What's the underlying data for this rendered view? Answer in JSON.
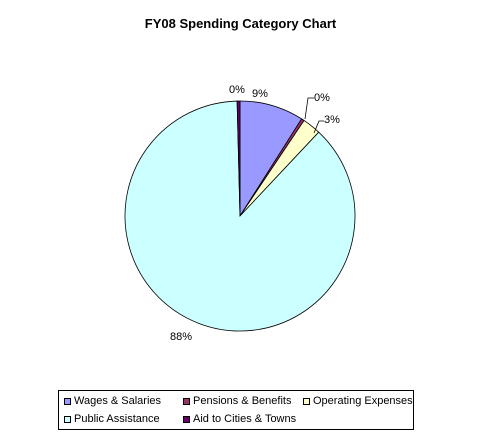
{
  "chart_data": {
    "type": "pie",
    "title": "FY08 Spending Category Chart",
    "slices": [
      {
        "name": "Wages & Salaries",
        "value": 9,
        "label": "9%",
        "color": "#9999ff"
      },
      {
        "name": "Pensions & Benefits",
        "value": 0.4,
        "label": "0%",
        "color": "#993366"
      },
      {
        "name": "Operating Expenses",
        "value": 2.6,
        "label": "3%",
        "color": "#ffffcc"
      },
      {
        "name": "Public Assistance",
        "value": 87.6,
        "label": "88%",
        "color": "#ccffff"
      },
      {
        "name": "Aid to Cities & Towns",
        "value": 0.4,
        "label": "0%",
        "color": "#660066"
      }
    ],
    "legend_position": "bottom"
  }
}
